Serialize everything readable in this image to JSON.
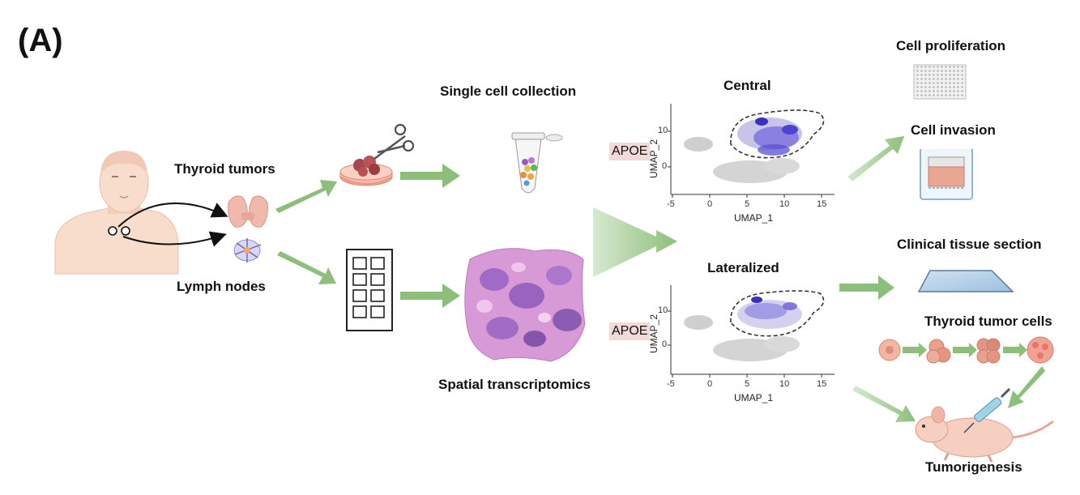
{
  "panel_label": "(A)",
  "labels": {
    "thyroid_tumors": "Thyroid tumors",
    "lymph_nodes": "Lymph nodes",
    "single_cell_collection": "Single cell collection",
    "spatial_transcriptomics": "Spatial transcriptomics",
    "central": "Central",
    "lateralized": "Lateralized",
    "cell_proliferation": "Cell proliferation",
    "cell_invasion": "Cell invasion",
    "clinical_tissue_section": "Clinical tissue section",
    "thyroid_tumor_cells": "Thyroid tumor cells",
    "tumorigenesis": "Tumorigenesis"
  },
  "umap_plots": [
    {
      "gene": "APOE",
      "xlabel": "UMAP_1",
      "ylabel": "UMAP_2",
      "x_ticks": [
        "-5",
        "0",
        "5",
        "10",
        "15"
      ],
      "y_ticks": [
        "10",
        "0"
      ]
    },
    {
      "gene": "APOE",
      "xlabel": "UMAP_1",
      "ylabel": "UMAP_2",
      "x_ticks": [
        "-5",
        "0",
        "5",
        "10",
        "15"
      ],
      "y_ticks": [
        "10",
        "0"
      ]
    }
  ],
  "colors": {
    "arrow_green": "#8dbf7a",
    "umap_purple": "#5b4fd6",
    "umap_grey": "#cfcfcf",
    "gene_highlight": "#f4d9d9",
    "skin": "#f8dccc"
  }
}
